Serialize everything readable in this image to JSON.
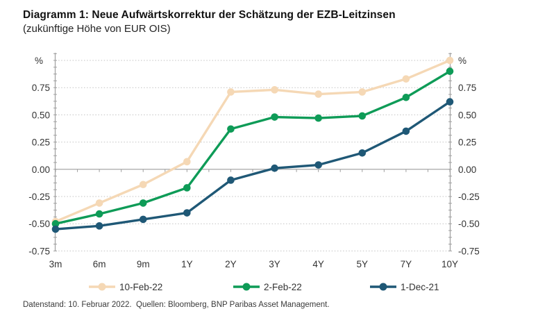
{
  "header": {
    "title": "Diagramm 1: Neue Aufwärtskorrektur der Schätzung der EZB-Leitzinsen",
    "subtitle": "(zukünftige Höhe von EUR OIS)"
  },
  "chart_data": {
    "type": "line",
    "title": "Diagramm 1: Neue Aufwärtskorrektur der Schätzung der EZB-Leitzinsen",
    "subtitle": "(zukünftige Höhe von EUR OIS)",
    "unit_label": "%",
    "categories": [
      "3m",
      "6m",
      "9m",
      "1Y",
      "2Y",
      "3Y",
      "4Y",
      "5Y",
      "7Y",
      "10Y"
    ],
    "series": [
      {
        "name": "10-Feb-22",
        "color": "#f5d8b5",
        "values": [
          -0.48,
          -0.31,
          -0.14,
          0.07,
          0.71,
          0.73,
          0.69,
          0.71,
          0.83,
          1.0
        ]
      },
      {
        "name": "2-Feb-22",
        "color": "#0e9b57",
        "values": [
          -0.5,
          -0.41,
          -0.31,
          -0.17,
          0.37,
          0.48,
          0.47,
          0.49,
          0.66,
          0.9
        ]
      },
      {
        "name": "1-Dec-21",
        "color": "#1f5876",
        "values": [
          -0.55,
          -0.52,
          -0.46,
          -0.4,
          -0.1,
          0.01,
          0.04,
          0.15,
          0.35,
          0.62
        ]
      }
    ],
    "ylim": [
      -0.75,
      1.0
    ],
    "y_tick_step": 0.25,
    "ytick_labels": [
      "-0.75",
      "-0.50",
      "-0.25",
      "0.00",
      "0.25",
      "0.50",
      "0.75"
    ],
    "grid": "horizontal dotted, solid zero line, y axis on both sides",
    "legend_position": "bottom",
    "colors": {
      "grid": "#c2c2c2",
      "axis": "#9e9e9e",
      "tick_text": "#333333"
    }
  },
  "footer": {
    "text": "Datenstand: 10. Februar 2022.  Quellen: Bloomberg, BNP Paribas Asset Management."
  }
}
